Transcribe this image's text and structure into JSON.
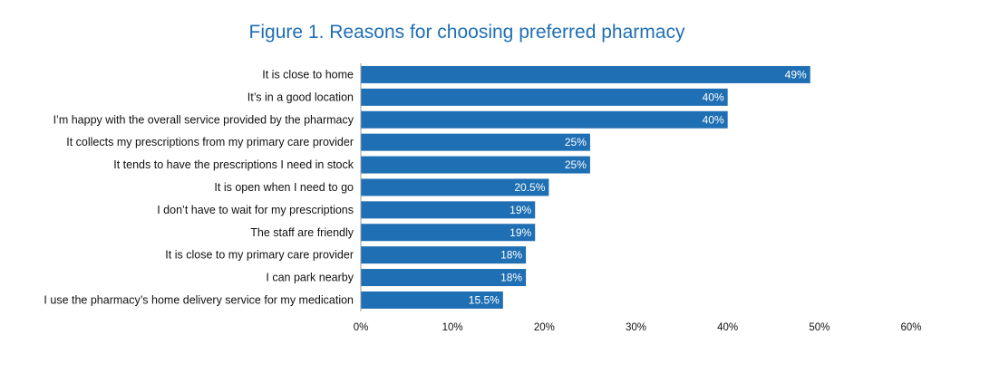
{
  "chart_data": {
    "type": "bar",
    "orientation": "horizontal",
    "title": "Figure 1. Reasons for choosing preferred pharmacy",
    "categories": [
      "It is close to home",
      "It’s in a good location",
      "I’m happy with the overall service provided by the pharmacy",
      "It collects my prescriptions from my primary care provider",
      "It tends to have the prescriptions I need in stock",
      "It is open when I need to go",
      "I don’t have to wait for my prescriptions",
      "The staff are friendly",
      "It is close to my primary care provider",
      "I can park nearby",
      "I use the pharmacy’s home delivery service for my medication"
    ],
    "values": [
      49,
      40,
      40,
      25,
      25,
      20.5,
      19,
      19,
      18,
      18,
      15.5
    ],
    "value_labels": [
      "49%",
      "40%",
      "40%",
      "25%",
      "25%",
      "20.5%",
      "19%",
      "19%",
      "18%",
      "18%",
      "15.5%"
    ],
    "xlim": [
      0,
      60
    ],
    "ticks": [
      0,
      10,
      20,
      30,
      40,
      50,
      60
    ],
    "tick_labels": [
      "0%",
      "10%",
      "20%",
      "30%",
      "40%",
      "50%",
      "60%"
    ],
    "xlabel": "",
    "ylabel": "",
    "grid": false,
    "bar_color": "#1f6fb4",
    "axis_color": "#9a9a9a"
  }
}
